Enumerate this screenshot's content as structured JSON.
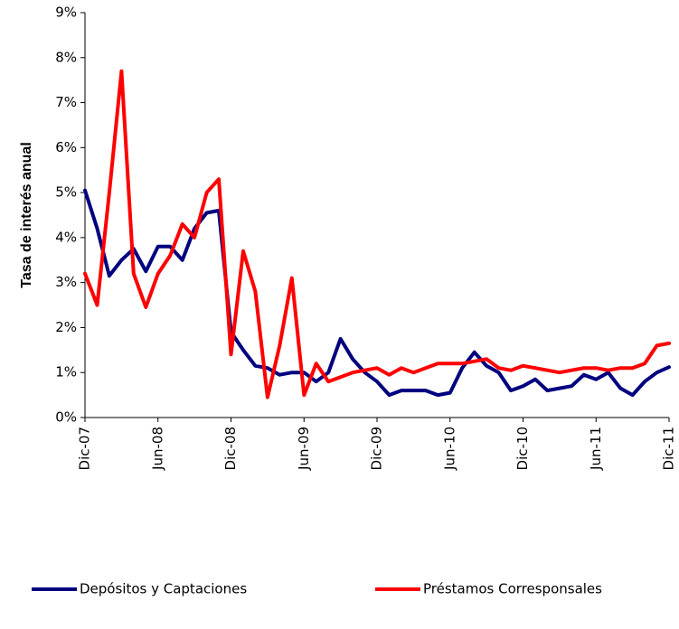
{
  "chart_data": {
    "type": "line",
    "y_label": "Tasa de interés anual",
    "categories": [
      "Dic-07",
      null,
      null,
      null,
      null,
      null,
      "Jun-08",
      null,
      null,
      null,
      null,
      null,
      "Dic-08",
      null,
      null,
      null,
      null,
      null,
      "Jun-09",
      null,
      null,
      null,
      null,
      null,
      "Dic-09",
      null,
      null,
      null,
      null,
      null,
      "Jun-10",
      null,
      null,
      null,
      null,
      null,
      "Dic-10",
      null,
      null,
      null,
      null,
      null,
      "Jun-11",
      null,
      null,
      null,
      null,
      null,
      "Dic-11"
    ],
    "series": [
      {
        "name": "Depósitos y Captaciones",
        "color": "#00007f",
        "values": [
          5.05,
          4.2,
          3.15,
          3.5,
          3.75,
          3.25,
          3.8,
          3.8,
          3.5,
          4.2,
          4.55,
          4.6,
          1.9,
          1.5,
          1.15,
          1.1,
          0.95,
          1.0,
          1.0,
          0.8,
          1.0,
          1.75,
          1.3,
          1.0,
          0.8,
          0.5,
          0.6,
          0.6,
          0.6,
          0.5,
          0.55,
          1.1,
          1.45,
          1.15,
          1.0,
          0.6,
          0.7,
          0.85,
          0.6,
          0.65,
          0.7,
          0.95,
          0.85,
          1.0,
          0.65,
          0.5,
          0.8,
          1.0,
          1.12
        ]
      },
      {
        "name": "Préstamos Corresponsales",
        "color": "#ff0000",
        "values": [
          3.2,
          2.5,
          5.0,
          7.7,
          3.2,
          2.45,
          3.2,
          3.6,
          4.3,
          4.0,
          5.0,
          5.3,
          1.4,
          3.7,
          2.8,
          0.45,
          1.6,
          3.1,
          0.5,
          1.2,
          0.8,
          0.9,
          1.0,
          1.05,
          1.1,
          0.95,
          1.1,
          1.0,
          1.1,
          1.2,
          1.2,
          1.2,
          1.25,
          1.3,
          1.1,
          1.05,
          1.15,
          1.1,
          1.05,
          1.0,
          1.05,
          1.1,
          1.1,
          1.05,
          1.1,
          1.1,
          1.2,
          1.6,
          1.65
        ]
      }
    ],
    "ylim": [
      0,
      9
    ],
    "yticks": [
      {
        "value": 0,
        "label": "0%"
      },
      {
        "value": 1,
        "label": "1%"
      },
      {
        "value": 2,
        "label": "2%"
      },
      {
        "value": 3,
        "label": "3%"
      },
      {
        "value": 4,
        "label": "4%"
      },
      {
        "value": 5,
        "label": "5%"
      },
      {
        "value": 6,
        "label": "6%"
      },
      {
        "value": 7,
        "label": "7%"
      },
      {
        "value": 8,
        "label": "8%"
      },
      {
        "value": 9,
        "label": "9%"
      }
    ],
    "legend": "bottom"
  }
}
